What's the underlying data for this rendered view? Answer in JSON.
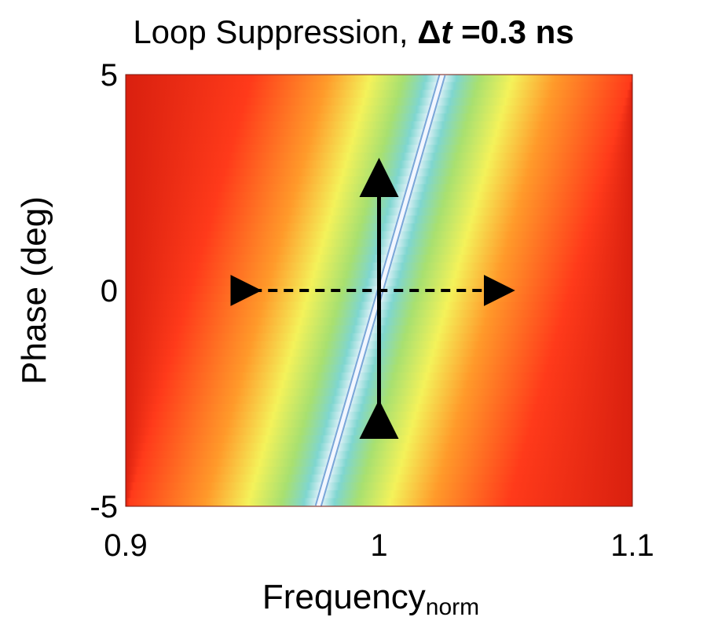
{
  "chart_data": {
    "type": "heatmap",
    "title_prefix": "Loop Suppression, ",
    "title_delta": "Δ",
    "title_t": "t",
    "title_suffix": " =0.3 ns",
    "xlabel": "Frequency",
    "xlabel_subscript": "norm",
    "ylabel": "Phase (deg)",
    "xlim": [
      0.9,
      1.1
    ],
    "ylim": [
      -5,
      5
    ],
    "xticks": [
      {
        "value": 0.9,
        "label": "0.9"
      },
      {
        "value": 1.0,
        "label": "1"
      },
      {
        "value": 1.1,
        "label": "1.1"
      }
    ],
    "yticks": [
      {
        "value": -5,
        "label": "-5"
      },
      {
        "value": 0,
        "label": "0"
      },
      {
        "value": 5,
        "label": "5"
      }
    ],
    "null_line": {
      "x_at_ymin": 0.976,
      "x_at_ymax": 1.025
    },
    "arrows": [
      {
        "kind": "solid",
        "direction": "vertical",
        "from": [
          1.0,
          -2.8
        ],
        "to": [
          1.0,
          2.8
        ]
      },
      {
        "kind": "dashed",
        "direction": "horizontal",
        "from": [
          0.95,
          0
        ],
        "to": [
          1.05,
          0
        ]
      }
    ],
    "colors": {
      "far": "#6b1008",
      "mid": "#d9200f",
      "near": "#ff3a1a",
      "orange": "#ff9a2a",
      "yellow": "#f4f25a",
      "green": "#a8e070",
      "cyan": "#7fd6d0",
      "null": "#f2f6ff",
      "arrow": "#000000"
    }
  }
}
